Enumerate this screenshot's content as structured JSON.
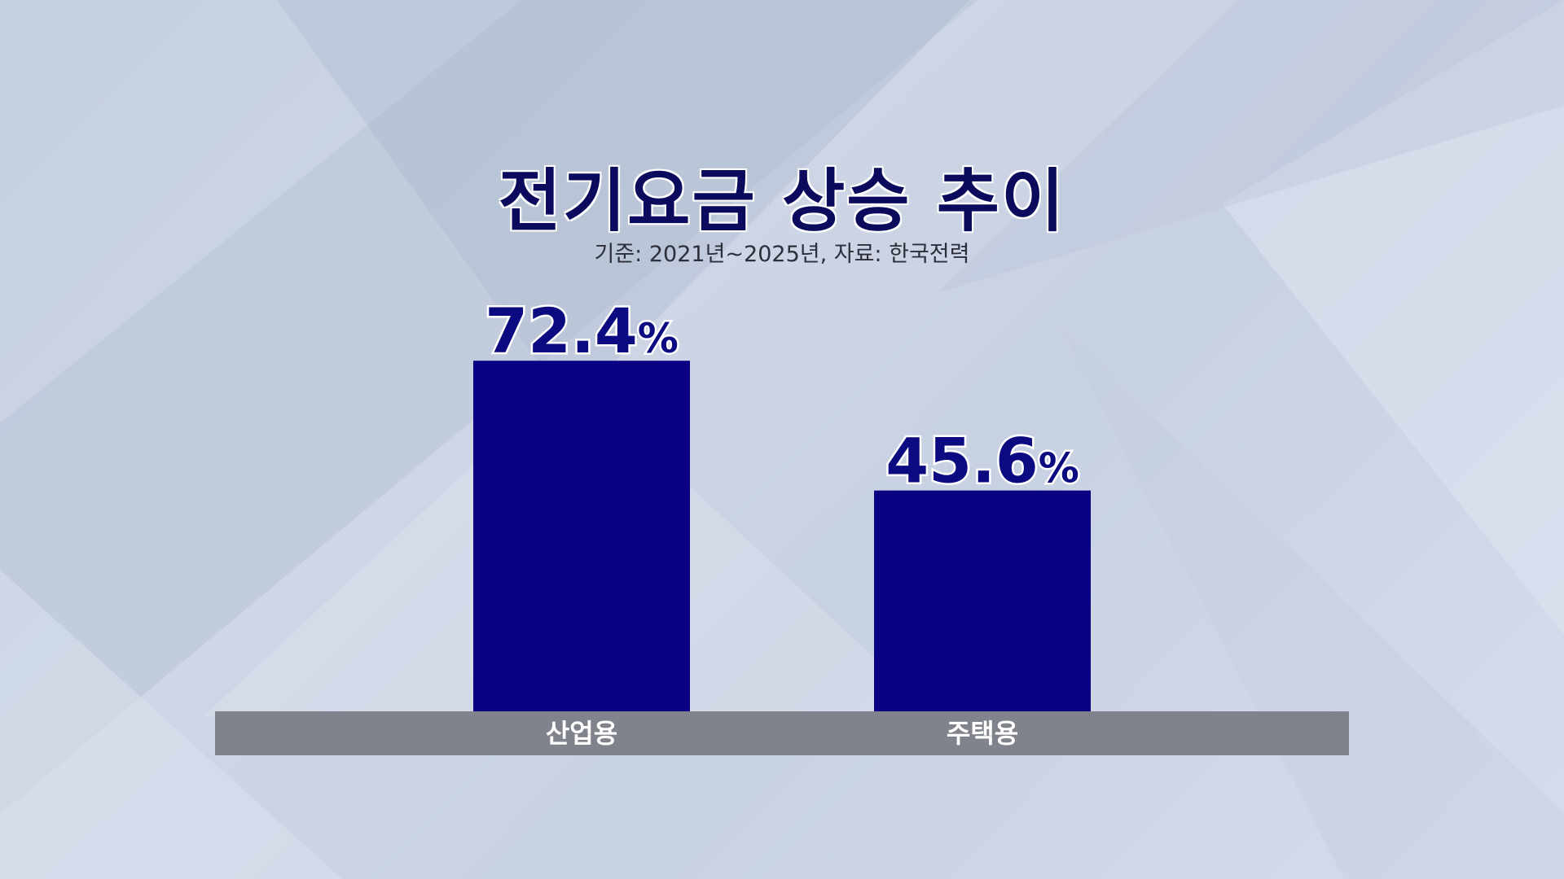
{
  "title": "전기요금 상승 추이",
  "subtitle": "기준: 2021년~2025년, 자료: 한국전력",
  "chart_data": {
    "type": "bar",
    "categories": [
      "산업용",
      "주택용"
    ],
    "values": [
      72.4,
      45.6
    ],
    "value_labels": [
      "72.4",
      "45.6"
    ],
    "unit": "%",
    "ylim": [
      0,
      100
    ],
    "grid": false,
    "colors": {
      "bar": "#0a0082",
      "baseline_band": "#80838c",
      "value_text": "#0b0a80",
      "category_text": "#ffffff"
    }
  }
}
